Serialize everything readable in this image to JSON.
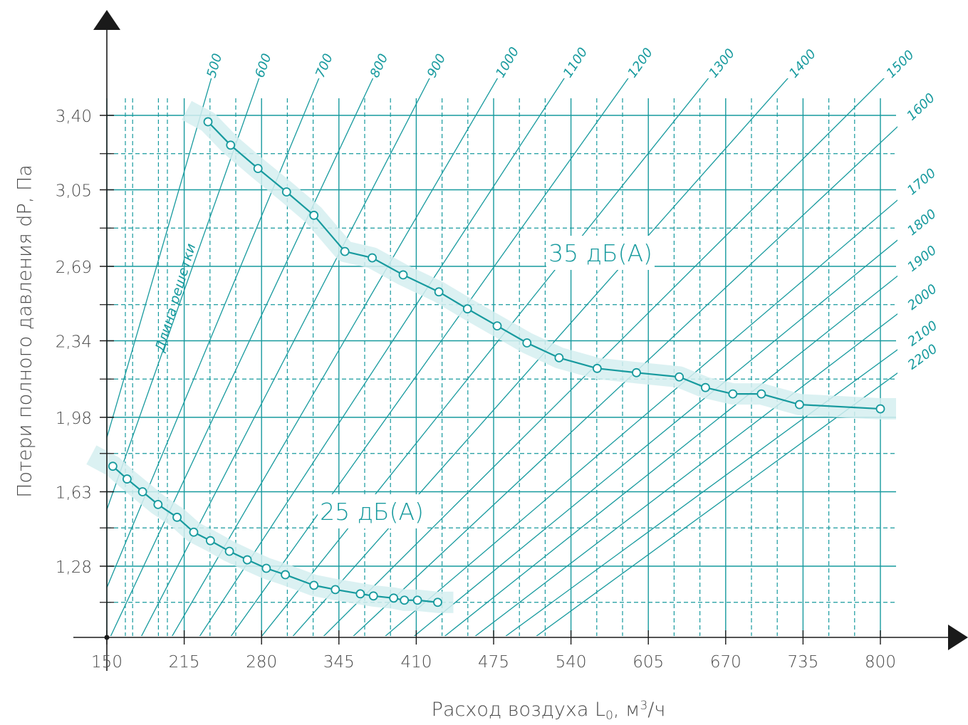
{
  "chart_data": {
    "type": "line",
    "ylabel": "Потери полного давления dP, Па",
    "xlabel_parts": {
      "pre": "Расход воздуха L",
      "sub": "0",
      "mid": ", м",
      "sup": "3",
      "post": "/ч"
    },
    "xlim": [
      105,
      825
    ],
    "ylim": [
      0.91,
      3.6
    ],
    "x_ticks": [
      150,
      215,
      280,
      345,
      410,
      475,
      540,
      605,
      670,
      735,
      800
    ],
    "y_ticks": [
      1.28,
      1.63,
      1.98,
      2.34,
      2.69,
      3.05,
      3.4
    ],
    "y_tick_labels": [
      "1,28",
      "1,63",
      "1,98",
      "2,34",
      "2,69",
      "3,05",
      "3,40"
    ],
    "y_dashed": [
      1.11,
      1.46,
      1.81,
      2.16,
      2.51,
      2.87,
      3.22
    ],
    "grille_length_label": "Длина решетки",
    "grille_length_lines": [
      {
        "label": "500",
        "x": [
          104.6,
          239.1
        ],
        "y": [
          1.01,
          3.6
        ]
      },
      {
        "label": "600",
        "x": [
          109.9,
          279.5
        ],
        "y": [
          0.91,
          3.6
        ]
      },
      {
        "label": "700",
        "x": [
          130.0,
          330.1
        ],
        "y": [
          0.91,
          3.6
        ]
      },
      {
        "label": "800",
        "x": [
          149.8,
          375.7
        ],
        "y": [
          0.91,
          3.6
        ]
      },
      {
        "label": "900",
        "x": [
          175.3,
          423.5
        ],
        "y": [
          0.91,
          3.6
        ]
      },
      {
        "label": "1000",
        "x": [
          200.6,
          480.9
        ],
        "y": [
          0.91,
          3.6
        ]
      },
      {
        "label": "1100",
        "x": [
          223.3,
          537.3
        ],
        "y": [
          0.91,
          3.6
        ]
      },
      {
        "label": "1200",
        "x": [
          249.2,
          591.3
        ],
        "y": [
          0.91,
          3.6
        ]
      },
      {
        "label": "1300",
        "x": [
          274.3,
          659.1
        ],
        "y": [
          0.91,
          3.6
        ]
      },
      {
        "label": "1400",
        "x": [
          299.9,
          726.3
        ],
        "y": [
          0.91,
          3.6
        ]
      },
      {
        "label": "1500",
        "x": [
          324.9,
          807.6
        ],
        "y": [
          0.91,
          3.6
        ]
      },
      {
        "label": "1600",
        "x": [
          349.3,
          824.6
        ],
        "y": [
          0.91,
          3.4
        ]
      },
      {
        "label": "1700",
        "x": [
          375.4,
          824.6
        ],
        "y": [
          0.91,
          3.05
        ]
      },
      {
        "label": "1800",
        "x": [
          399.3,
          824.6
        ],
        "y": [
          0.91,
          2.86
        ]
      },
      {
        "label": "1900",
        "x": [
          424.8,
          824.6
        ],
        "y": [
          0.91,
          2.69
        ]
      },
      {
        "label": "2000",
        "x": [
          450.0,
          824.6
        ],
        "y": [
          0.91,
          2.51
        ]
      },
      {
        "label": "2100",
        "x": [
          475.2,
          824.6
        ],
        "y": [
          0.91,
          2.34
        ]
      },
      {
        "label": "2200",
        "x": [
          500.9,
          824.6
        ],
        "y": [
          0.91,
          2.23
        ]
      }
    ],
    "series": [
      {
        "name": "35 дБ(А)",
        "x": [
          235,
          254,
          277,
          301,
          324,
          350,
          373,
          399,
          429,
          453,
          478,
          503,
          530,
          562,
          595,
          631,
          653,
          676,
          700,
          732,
          800
        ],
        "y": [
          3.37,
          3.26,
          3.15,
          3.04,
          2.93,
          2.76,
          2.73,
          2.65,
          2.57,
          2.49,
          2.41,
          2.33,
          2.26,
          2.21,
          2.19,
          2.17,
          2.12,
          2.09,
          2.09,
          2.04,
          2.02
        ]
      },
      {
        "name": "25 дБ(А)",
        "x": [
          155,
          167,
          180,
          193,
          209,
          223,
          237,
          253,
          268,
          284,
          300,
          324,
          342,
          363,
          374,
          391,
          400,
          411,
          428
        ],
        "y": [
          1.75,
          1.69,
          1.63,
          1.57,
          1.51,
          1.44,
          1.4,
          1.35,
          1.31,
          1.27,
          1.24,
          1.19,
          1.17,
          1.15,
          1.14,
          1.13,
          1.12,
          1.12,
          1.11
        ]
      }
    ],
    "colors": {
      "accent": "#179a9e",
      "band": "#d5eef0",
      "grid": "#179a9e",
      "axis": "#1a1a1a",
      "text": "#4a4a4a"
    }
  }
}
